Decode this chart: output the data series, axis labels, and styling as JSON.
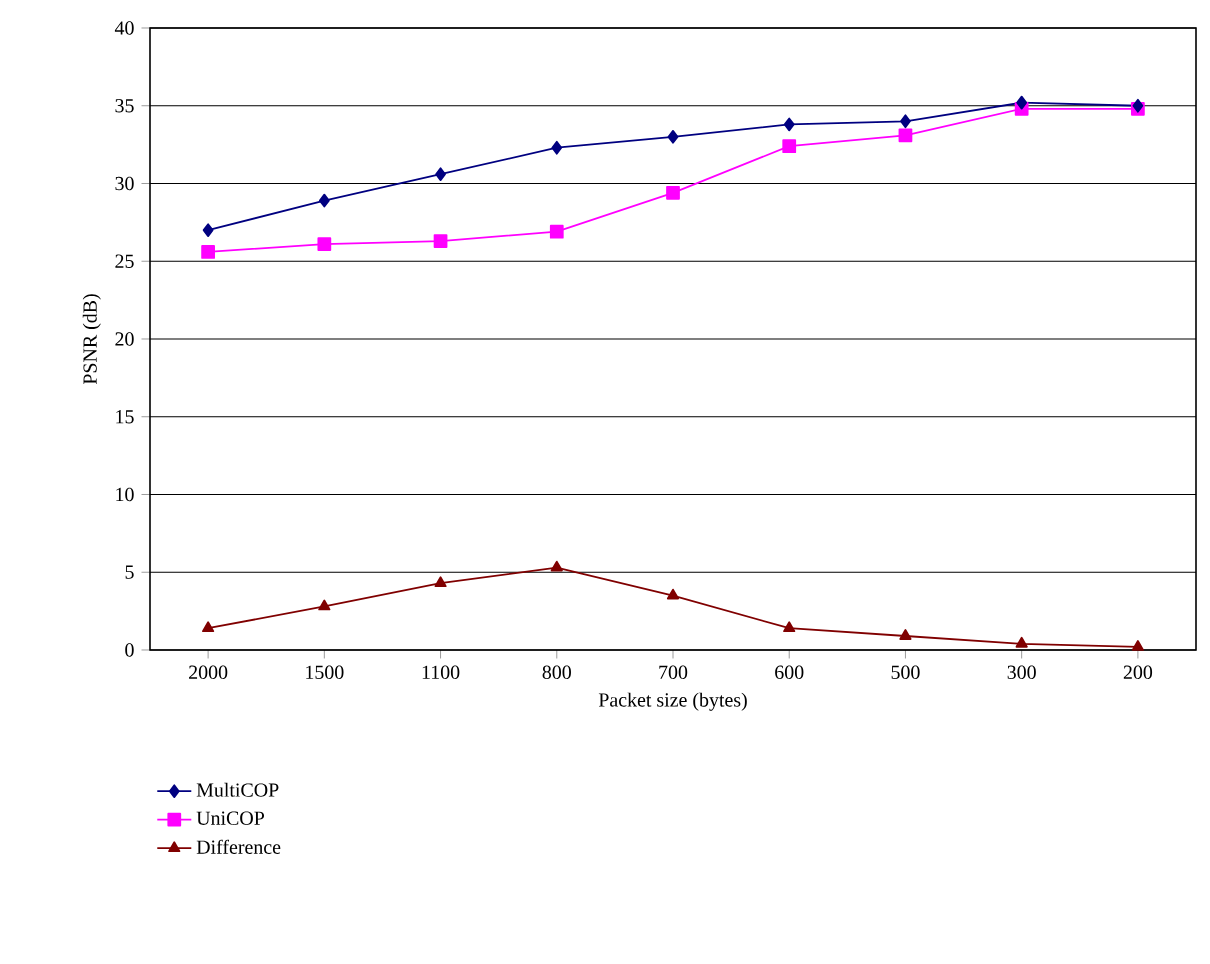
{
  "chart_data": {
    "type": "line",
    "xlabel": "Packet size (bytes)",
    "ylabel": "PSNR (dB)",
    "categories": [
      "2000",
      "1500",
      "1100",
      "800",
      "700",
      "600",
      "500",
      "300",
      "200"
    ],
    "series": [
      {
        "name": "MultiCOP",
        "color": "#000080",
        "marker": "diamond",
        "values": [
          27.0,
          28.9,
          30.6,
          32.3,
          33.0,
          33.8,
          34.0,
          35.2,
          35.0
        ]
      },
      {
        "name": "UniCOP",
        "color": "#ff00ff",
        "marker": "square",
        "values": [
          25.6,
          26.1,
          26.3,
          26.9,
          29.4,
          32.4,
          33.1,
          34.8,
          34.8
        ]
      },
      {
        "name": "Difference",
        "color": "#800000",
        "marker": "triangle",
        "values": [
          1.4,
          2.8,
          4.3,
          5.3,
          3.5,
          1.4,
          0.9,
          0.4,
          0.2
        ]
      }
    ],
    "ylim": [
      0,
      40
    ],
    "yticks": [
      0,
      5,
      10,
      15,
      20,
      25,
      30,
      35,
      40
    ],
    "grid": "y",
    "legend": "bottom left",
    "line_style": "solid"
  }
}
